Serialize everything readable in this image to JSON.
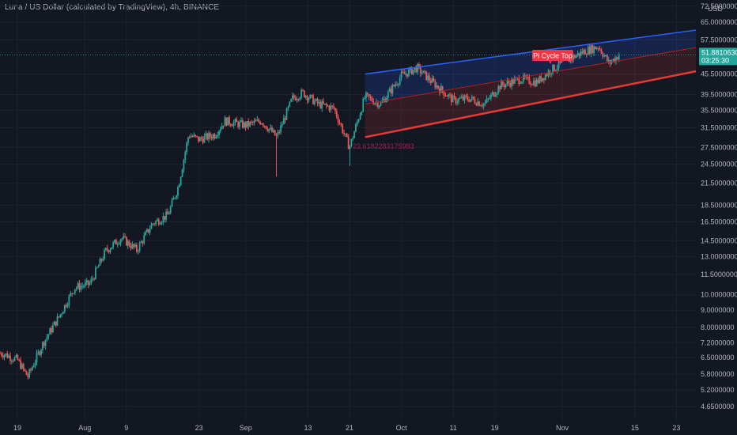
{
  "header": {
    "title": "Luna / US Dollar (calculated by TradingView), 4h, BINANCE"
  },
  "colors": {
    "background": "#131722",
    "up": "#26a69a",
    "down": "#ef5350",
    "upper_channel": "#2962ff",
    "lower_channel": "#e53935",
    "mid_channel": "#b71c1c",
    "price_label_bg": "#26a69a",
    "annotation_bg": "#f23645"
  },
  "price_axis": {
    "unit": "USD",
    "scale": "log",
    "ticks": [
      "72.5000000",
      "65.0000000",
      "57.5000000",
      "45.5000000",
      "39.5000000",
      "35.5000000",
      "31.5000000",
      "27.5000000",
      "24.5000000",
      "21.5000000",
      "18.5000000",
      "16.5000000",
      "14.5000000",
      "13.0000000",
      "11.5000000",
      "10.0000000",
      "9.0000000",
      "8.0000000",
      "7.2000000",
      "6.5000000",
      "5.8000000",
      "5.2000000",
      "4.6500000"
    ]
  },
  "time_axis": {
    "ticks": [
      "19",
      "Aug",
      "9",
      "23",
      "Sep",
      "13",
      "21",
      "Oct",
      "11",
      "19",
      "Nov",
      "15",
      "23"
    ]
  },
  "current_price": {
    "value": "51.8810630",
    "countdown": "03:25:30"
  },
  "annotations": {
    "pi_cycle_top": "Pi Cycle Top",
    "channel_value": "23.6182283175983"
  },
  "chart_data": {
    "type": "candlestick",
    "title": "Luna / US Dollar (calculated by TradingView), 4h, BINANCE",
    "yscale": "log",
    "ylim": [
      4.4,
      74
    ],
    "current_price": 51.881063,
    "approx_daily_close": [
      {
        "date": "Jul 16",
        "close": 6.7
      },
      {
        "date": "Jul 19",
        "close": 6.4
      },
      {
        "date": "Jul 21",
        "close": 5.7
      },
      {
        "date": "Jul 24",
        "close": 7.2
      },
      {
        "date": "Jul 27",
        "close": 8.6
      },
      {
        "date": "Jul 30",
        "close": 10.5
      },
      {
        "date": "Aug 2",
        "close": 10.8
      },
      {
        "date": "Aug 5",
        "close": 13.5
      },
      {
        "date": "Aug 8",
        "close": 14.8
      },
      {
        "date": "Aug 11",
        "close": 13.6
      },
      {
        "date": "Aug 14",
        "close": 16.3
      },
      {
        "date": "Aug 17",
        "close": 17.3
      },
      {
        "date": "Aug 19",
        "close": 21.0
      },
      {
        "date": "Aug 21",
        "close": 30.0
      },
      {
        "date": "Aug 23",
        "close": 29.0
      },
      {
        "date": "Aug 26",
        "close": 30.0
      },
      {
        "date": "Aug 28",
        "close": 33.0
      },
      {
        "date": "Sep 1",
        "close": 32.0
      },
      {
        "date": "Sep 4",
        "close": 33.0
      },
      {
        "date": "Sep 7",
        "close": 29.5
      },
      {
        "date": "Sep 10",
        "close": 38.5
      },
      {
        "date": "Sep 12",
        "close": 40.0
      },
      {
        "date": "Sep 15",
        "close": 37.0
      },
      {
        "date": "Sep 18",
        "close": 36.0
      },
      {
        "date": "Sep 21",
        "close": 27.5
      },
      {
        "date": "Sep 24",
        "close": 39.0
      },
      {
        "date": "Sep 27",
        "close": 37.0
      },
      {
        "date": "Oct 1",
        "close": 45.0
      },
      {
        "date": "Oct 4",
        "close": 47.5
      },
      {
        "date": "Oct 7",
        "close": 43.0
      },
      {
        "date": "Oct 11",
        "close": 38.0
      },
      {
        "date": "Oct 14",
        "close": 38.5
      },
      {
        "date": "Oct 17",
        "close": 37.0
      },
      {
        "date": "Oct 20",
        "close": 42.0
      },
      {
        "date": "Oct 24",
        "close": 44.0
      },
      {
        "date": "Oct 27",
        "close": 43.0
      },
      {
        "date": "Oct 30",
        "close": 47.0
      },
      {
        "date": "Nov 2",
        "close": 50.0
      },
      {
        "date": "Nov 5",
        "close": 53.0
      },
      {
        "date": "Nov 8",
        "close": 55.0
      },
      {
        "date": "Nov 10",
        "close": 49.0
      },
      {
        "date": "Nov 12",
        "close": 51.9
      }
    ],
    "lows": [
      {
        "date": "Sep 7",
        "low": 22.5
      },
      {
        "date": "Sep 21",
        "low": 24.2
      }
    ],
    "channel": {
      "start_date": "Sep 24",
      "end_date": "Nov 25",
      "upper": [
        45.5,
        61.0
      ],
      "middle": [
        37.0,
        54.0
      ],
      "lower": [
        29.5,
        45.8
      ]
    }
  }
}
